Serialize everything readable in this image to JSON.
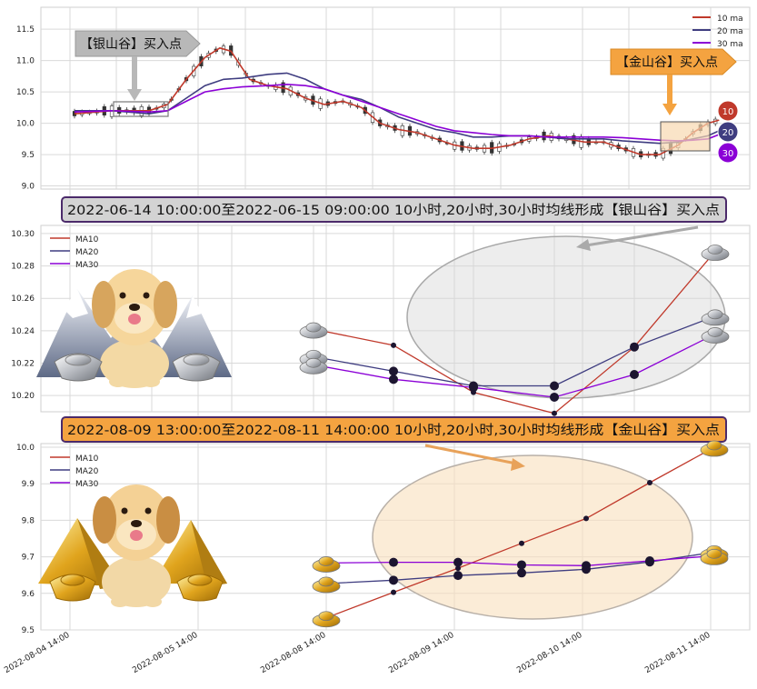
{
  "colors": {
    "ma10": "#c0392b",
    "ma20": "#3f3d80",
    "ma30": "#8b00d6",
    "grid": "#d9d9d9",
    "banner_silver_fill": "#d3d3d3",
    "banner_gold_fill": "#f4a340",
    "banner_border": "#4b2a6a"
  },
  "icons": [
    "dog-with-silver-mountains-icon",
    "dog-with-gold-pyramids-icon",
    "silver-ingot-icon",
    "gold-ingot-icon"
  ],
  "top_panel": {
    "legend": [
      "10 ma",
      "20 ma",
      "30 ma"
    ],
    "silver_callout": "【银山谷】买入点",
    "gold_callout": "【金山谷】买入点",
    "badges": [
      "10",
      "20",
      "30"
    ]
  },
  "silver_panel": {
    "banner": "2022-06-14 10:00:00至2022-06-15 09:00:00 10小时,20小时,30小时均线形成【银山谷】买入点",
    "legend": [
      "MA10",
      "MA20",
      "MA30"
    ]
  },
  "gold_panel": {
    "banner": "2022-08-09 13:00:00至2022-08-11 14:00:00 10小时,20小时,30小时均线形成【金山谷】买入点",
    "legend": [
      "MA10",
      "MA20",
      "MA30"
    ]
  },
  "chart_data": [
    {
      "type": "line",
      "x_tick_labels": [
        "2022-08-04 14:00",
        "2022-08-05 14:00",
        "2022-08-08 14:00",
        "2022-08-09 14:00",
        "2022-08-10 14:00",
        "2022-08-11 14:00"
      ],
      "y_ticks": [
        9.0,
        9.5,
        10.0,
        10.5,
        11.0,
        11.5
      ],
      "ylim": [
        8.95,
        11.85
      ],
      "x_count": 100,
      "series": [
        {
          "name": "10 ma",
          "points": [
            [
              0,
              10.15
            ],
            [
              10,
              10.2
            ],
            [
              20,
              10.2
            ],
            [
              25,
              10.3
            ],
            [
              30,
              10.7
            ],
            [
              35,
              11.05
            ],
            [
              39,
              11.2
            ],
            [
              42,
              11.15
            ],
            [
              47,
              10.7
            ],
            [
              52,
              10.6
            ],
            [
              57,
              10.55
            ],
            [
              62,
              10.4
            ],
            [
              67,
              10.3
            ],
            [
              72,
              10.35
            ],
            [
              77,
              10.25
            ],
            [
              82,
              10.0
            ],
            [
              87,
              9.9
            ],
            [
              92,
              9.85
            ],
            [
              97,
              9.75
            ],
            [
              102,
              9.65
            ],
            [
              107,
              9.6
            ],
            [
              112,
              9.6
            ],
            [
              117,
              9.65
            ],
            [
              122,
              9.75
            ],
            [
              127,
              9.8
            ],
            [
              132,
              9.75
            ],
            [
              137,
              9.7
            ],
            [
              142,
              9.7
            ],
            [
              147,
              9.6
            ],
            [
              152,
              9.5
            ],
            [
              157,
              9.5
            ],
            [
              162,
              9.65
            ],
            [
              166,
              9.85
            ],
            [
              170,
              10.0
            ],
            [
              173,
              10.05
            ]
          ]
        },
        {
          "name": "20 ma",
          "points": [
            [
              0,
              10.2
            ],
            [
              10,
              10.2
            ],
            [
              20,
              10.15
            ],
            [
              25,
              10.2
            ],
            [
              30,
              10.4
            ],
            [
              35,
              10.6
            ],
            [
              40,
              10.7
            ],
            [
              45,
              10.72
            ],
            [
              52,
              10.78
            ],
            [
              57,
              10.8
            ],
            [
              62,
              10.7
            ],
            [
              67,
              10.55
            ],
            [
              72,
              10.45
            ],
            [
              77,
              10.38
            ],
            [
              82,
              10.25
            ],
            [
              87,
              10.1
            ],
            [
              92,
              10.0
            ],
            [
              97,
              9.9
            ],
            [
              102,
              9.85
            ],
            [
              107,
              9.78
            ],
            [
              112,
              9.78
            ],
            [
              117,
              9.8
            ],
            [
              122,
              9.8
            ],
            [
              127,
              9.78
            ],
            [
              132,
              9.75
            ],
            [
              137,
              9.75
            ],
            [
              142,
              9.75
            ],
            [
              147,
              9.72
            ],
            [
              152,
              9.7
            ],
            [
              157,
              9.68
            ],
            [
              162,
              9.7
            ],
            [
              166,
              9.75
            ],
            [
              170,
              9.8
            ],
            [
              173,
              9.88
            ]
          ]
        },
        {
          "name": "30 ma",
          "points": [
            [
              0,
              10.18
            ],
            [
              10,
              10.2
            ],
            [
              20,
              10.18
            ],
            [
              25,
              10.2
            ],
            [
              30,
              10.35
            ],
            [
              35,
              10.5
            ],
            [
              40,
              10.55
            ],
            [
              45,
              10.58
            ],
            [
              52,
              10.6
            ],
            [
              57,
              10.62
            ],
            [
              62,
              10.6
            ],
            [
              67,
              10.55
            ],
            [
              72,
              10.45
            ],
            [
              77,
              10.35
            ],
            [
              82,
              10.25
            ],
            [
              87,
              10.15
            ],
            [
              92,
              10.05
            ],
            [
              97,
              9.95
            ],
            [
              102,
              9.88
            ],
            [
              107,
              9.85
            ],
            [
              112,
              9.82
            ],
            [
              117,
              9.8
            ],
            [
              122,
              9.8
            ],
            [
              127,
              9.78
            ],
            [
              132,
              9.78
            ],
            [
              137,
              9.78
            ],
            [
              142,
              9.78
            ],
            [
              147,
              9.77
            ],
            [
              152,
              9.75
            ],
            [
              157,
              9.73
            ],
            [
              162,
              9.72
            ],
            [
              166,
              9.73
            ],
            [
              170,
              9.75
            ],
            [
              173,
              9.82
            ]
          ]
        }
      ]
    },
    {
      "type": "line",
      "y_ticks": [
        10.2,
        10.22,
        10.24,
        10.26,
        10.28,
        10.3
      ],
      "ylim": [
        10.19,
        10.305
      ],
      "series": [
        {
          "name": "MA10",
          "values": [
            10.241,
            10.231,
            10.202,
            10.189,
            10.23,
            10.289
          ]
        },
        {
          "name": "MA20",
          "values": [
            10.224,
            10.215,
            10.206,
            10.206,
            10.23,
            10.249
          ]
        },
        {
          "name": "MA30",
          "values": [
            10.219,
            10.21,
            10.205,
            10.199,
            10.213,
            10.238
          ]
        }
      ]
    },
    {
      "type": "line",
      "y_ticks": [
        9.5,
        9.6,
        9.7,
        9.8,
        9.9,
        10.0
      ],
      "ylim": [
        9.5,
        10.01
      ],
      "series": [
        {
          "name": "MA10",
          "values": [
            9.533,
            9.603,
            9.669,
            9.737,
            9.805,
            9.903,
            10.0
          ]
        },
        {
          "name": "MA20",
          "values": [
            9.627,
            9.636,
            9.649,
            9.656,
            9.666,
            9.686,
            9.713
          ]
        },
        {
          "name": "MA30",
          "values": [
            9.683,
            9.685,
            9.685,
            9.678,
            9.676,
            9.689,
            9.703
          ]
        }
      ]
    }
  ]
}
